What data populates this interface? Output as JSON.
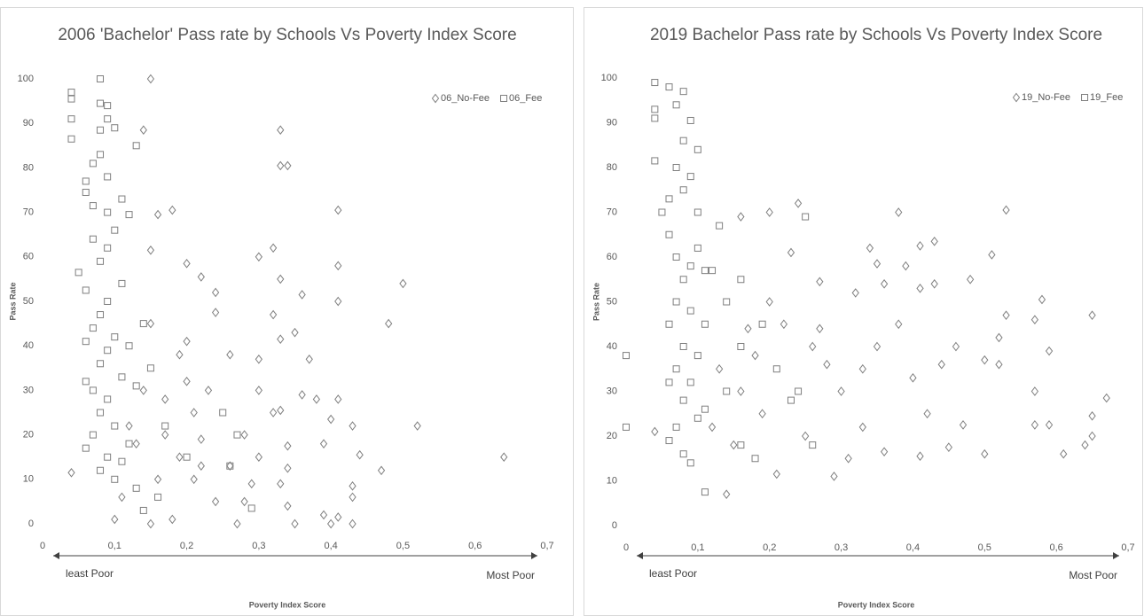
{
  "chart_data": [
    {
      "type": "scatter",
      "title": "2006 'Bachelor' Pass rate by Schools Vs  Poverty Index Score",
      "x_label": "Poverty Index Score",
      "y_label": "Pass Rate",
      "annotations": [
        "least Poor",
        "Most Poor"
      ],
      "xlim": [
        0,
        0.7
      ],
      "ylim": [
        0,
        100
      ],
      "xticks": [
        0,
        {
          "value": 0.1,
          "label": "0,1"
        },
        {
          "value": 0.2,
          "label": "0,2"
        },
        {
          "value": 0.3,
          "label": "0,3"
        },
        {
          "value": 0.4,
          "label": "0,4"
        },
        {
          "value": 0.5,
          "label": "0,5"
        },
        {
          "value": 0.6,
          "label": "0,6"
        },
        {
          "value": 0.7,
          "label": "0,7"
        }
      ],
      "yticks": [
        0,
        10,
        20,
        30,
        40,
        50,
        60,
        70,
        80,
        90,
        100
      ],
      "grid": false,
      "legend": "top-right",
      "series": [
        {
          "name": "06_No-Fee",
          "color": "#7f7f7f",
          "marker": "diamond",
          "x": [
            0.04,
            0.15,
            0.14,
            0.33,
            0.33,
            0.34,
            0.41,
            0.18,
            0.16,
            0.32,
            0.15,
            0.3,
            0.41,
            0.2,
            0.33,
            0.22,
            0.5,
            0.36,
            0.24,
            0.41,
            0.32,
            0.24,
            0.48,
            0.35,
            0.33,
            0.2,
            0.37,
            0.3,
            0.26,
            0.38,
            0.41,
            0.3,
            0.36,
            0.52,
            0.4,
            0.43,
            0.33,
            0.32,
            0.28,
            0.39,
            0.34,
            0.44,
            0.3,
            0.64,
            0.47,
            0.34,
            0.26,
            0.22,
            0.33,
            0.29,
            0.43,
            0.28,
            0.34,
            0.43,
            0.39,
            0.41,
            0.4,
            0.43,
            0.35,
            0.27,
            0.1,
            0.18,
            0.15,
            0.19,
            0.17,
            0.21,
            0.14,
            0.17,
            0.2,
            0.15,
            0.12,
            0.19,
            0.22,
            0.16,
            0.24,
            0.23,
            0.11,
            0.13,
            0.21
          ],
          "values": [
            11.5,
            100,
            88.5,
            88.5,
            80.5,
            80.5,
            70.5,
            70.5,
            69.5,
            62,
            61.5,
            60,
            58,
            58.5,
            55,
            55.5,
            54,
            51.5,
            52,
            50,
            47,
            47.5,
            45,
            43,
            41.5,
            41,
            37,
            37,
            38,
            28,
            28,
            30,
            29,
            22,
            23.5,
            22,
            25.5,
            25,
            20,
            18,
            17.5,
            15.5,
            15,
            15,
            12,
            12.5,
            13,
            13,
            9,
            9,
            8.5,
            5,
            4,
            6,
            2,
            1.5,
            0,
            0,
            0,
            0,
            1,
            1,
            0,
            15,
            20,
            25,
            30,
            28,
            32,
            45,
            22,
            38,
            19,
            10,
            5,
            30,
            6,
            18,
            10
          ]
        },
        {
          "name": "06_Fee",
          "color": "#7f7f7f",
          "marker": "square",
          "x": [
            0.04,
            0.04,
            0.04,
            0.04,
            0.08,
            0.08,
            0.09,
            0.1,
            0.09,
            0.08,
            0.13,
            0.07,
            0.08,
            0.09,
            0.06,
            0.06,
            0.11,
            0.07,
            0.09,
            0.12,
            0.1,
            0.07,
            0.09,
            0.08,
            0.05,
            0.11,
            0.06,
            0.09,
            0.08,
            0.07,
            0.1,
            0.06,
            0.09,
            0.14,
            0.12,
            0.08,
            0.11,
            0.07,
            0.09,
            0.06,
            0.13,
            0.08,
            0.1,
            0.07,
            0.12,
            0.06,
            0.09,
            0.11,
            0.08,
            0.1,
            0.13,
            0.16,
            0.14,
            0.27,
            0.25,
            0.26,
            0.29,
            0.2,
            0.17,
            0.15
          ],
          "values": [
            97,
            95.5,
            91,
            86.5,
            100,
            94.5,
            94,
            89,
            91,
            88.5,
            85,
            81,
            83,
            78,
            77,
            74.5,
            73,
            71.5,
            70,
            69.5,
            66,
            64,
            62,
            59,
            56.5,
            54,
            52.5,
            50,
            47,
            44,
            42,
            41,
            39,
            45,
            40,
            36,
            33,
            30,
            28,
            32,
            31,
            25,
            22,
            20,
            18,
            17,
            15,
            14,
            12,
            10,
            8,
            6,
            3,
            20,
            25,
            13,
            3.5,
            15,
            22,
            35
          ]
        }
      ]
    },
    {
      "type": "scatter",
      "title": "2019 Bachelor Pass rate by Schools Vs  Poverty Index Score",
      "x_label": "Poverty Index Score",
      "y_label": "Pass Rate",
      "annotations": [
        "least Poor",
        "Most Poor"
      ],
      "xlim": [
        0,
        0.7
      ],
      "ylim": [
        0,
        100
      ],
      "xticks": [
        0,
        {
          "value": 0.1,
          "label": "0,1"
        },
        {
          "value": 0.2,
          "label": "0,2"
        },
        {
          "value": 0.3,
          "label": "0,3"
        },
        {
          "value": 0.4,
          "label": "0,4"
        },
        {
          "value": 0.5,
          "label": "0,5"
        },
        {
          "value": 0.6,
          "label": "0,6"
        },
        {
          "value": 0.7,
          "label": "0,7"
        }
      ],
      "yticks": [
        0,
        10,
        20,
        30,
        40,
        50,
        60,
        70,
        80,
        90,
        100
      ],
      "grid": false,
      "legend": "top-right",
      "series": [
        {
          "name": "19_No-Fee",
          "color": "#7f7f7f",
          "marker": "diamond",
          "x": [
            0.04,
            0.14,
            0.53,
            0.38,
            0.24,
            0.2,
            0.16,
            0.51,
            0.43,
            0.41,
            0.34,
            0.35,
            0.39,
            0.23,
            0.48,
            0.43,
            0.41,
            0.36,
            0.27,
            0.32,
            0.53,
            0.58,
            0.65,
            0.57,
            0.52,
            0.46,
            0.5,
            0.59,
            0.67,
            0.57,
            0.52,
            0.65,
            0.57,
            0.59,
            0.64,
            0.65,
            0.61,
            0.5,
            0.45,
            0.41,
            0.36,
            0.29,
            0.21,
            0.31,
            0.25,
            0.33,
            0.4,
            0.44,
            0.3,
            0.28,
            0.35,
            0.22,
            0.18,
            0.16,
            0.19,
            0.12,
            0.15,
            0.27,
            0.42,
            0.47,
            0.38,
            0.33,
            0.26,
            0.2,
            0.17,
            0.13
          ],
          "values": [
            21,
            7,
            70.5,
            70,
            72,
            70,
            69,
            60.5,
            63.5,
            62.5,
            62,
            58.5,
            58,
            61,
            55,
            54,
            53,
            54,
            54.5,
            52,
            47,
            50.5,
            47,
            46,
            42,
            40,
            37,
            39,
            28.5,
            30,
            36,
            24.5,
            22.5,
            22.5,
            18,
            20,
            16,
            16,
            17.5,
            15.5,
            16.5,
            11,
            11.5,
            15,
            20,
            22,
            33,
            36,
            30,
            36,
            40,
            45,
            38,
            30,
            25,
            22,
            18,
            44,
            25,
            22.5,
            45,
            35,
            40,
            50,
            44,
            35
          ]
        },
        {
          "name": "19_Fee",
          "color": "#7f7f7f",
          "marker": "square",
          "x": [
            0.0,
            0.0,
            0.04,
            0.06,
            0.04,
            0.08,
            0.07,
            0.04,
            0.09,
            0.04,
            0.08,
            0.1,
            0.07,
            0.09,
            0.06,
            0.08,
            0.1,
            0.05,
            0.06,
            0.07,
            0.09,
            0.1,
            0.11,
            0.08,
            0.07,
            0.09,
            0.06,
            0.11,
            0.08,
            0.1,
            0.07,
            0.09,
            0.06,
            0.11,
            0.08,
            0.07,
            0.1,
            0.06,
            0.08,
            0.09,
            0.11,
            0.13,
            0.12,
            0.16,
            0.14,
            0.16,
            0.14,
            0.16,
            0.18,
            0.23,
            0.26,
            0.24,
            0.21,
            0.19,
            0.25
          ],
          "values": [
            38,
            22,
            99,
            98,
            93,
            97,
            94,
            91,
            90.5,
            81.5,
            86,
            84,
            80,
            78,
            73,
            75,
            70,
            70,
            65,
            60,
            58,
            62,
            57,
            55,
            50,
            48,
            45,
            45,
            40,
            38,
            35,
            32,
            32,
            26,
            28,
            22,
            24,
            19,
            16,
            14,
            7.5,
            67,
            57,
            55,
            50,
            40,
            30,
            18,
            15,
            28,
            18,
            30,
            35,
            45,
            69
          ]
        }
      ]
    }
  ]
}
